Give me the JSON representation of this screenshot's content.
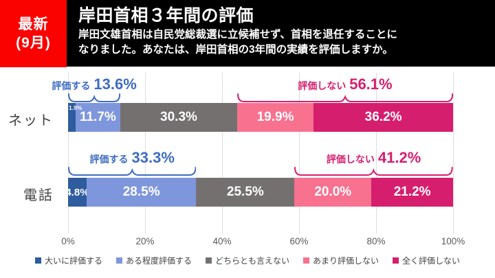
{
  "badge": {
    "line1": "最新",
    "line2": "(9月)",
    "bg_color": "#fa0200",
    "text_color": "#ffffff"
  },
  "header": {
    "bg_color": "#000000",
    "title": "岸田首相３年間の評価",
    "subtitle_line1": "岸田文雄首相は自民党総裁選に立候補せず、首相を退任することに",
    "subtitle_line2": "なりました。あなたは、岸田首相の3年間の実績を評価しますか。"
  },
  "chart_data": {
    "type": "bar",
    "stacked": true,
    "orientation": "horizontal",
    "categories": [
      "ネット",
      "電話"
    ],
    "series": [
      {
        "name": "大いに評価する",
        "color": "#2e5c9e",
        "values": [
          1.9,
          4.8
        ]
      },
      {
        "name": "ある程度評価する",
        "color": "#7e96dc",
        "values": [
          11.7,
          28.5
        ]
      },
      {
        "name": "どちらとも言えない",
        "color": "#757070",
        "values": [
          30.3,
          25.5
        ]
      },
      {
        "name": "あまり評価しない",
        "color": "#f8718f",
        "values": [
          19.9,
          20.0
        ]
      },
      {
        "name": "全く評価しない",
        "color": "#d61e6e",
        "values": [
          36.2,
          21.2
        ]
      }
    ],
    "segment_labels": [
      [
        "1.9%",
        "11.7%",
        "30.3%",
        "19.9%",
        "36.2%"
      ],
      [
        "4.8%",
        "28.5%",
        "25.5%",
        "20.0%",
        "21.2%"
      ]
    ],
    "annotations": [
      {
        "row": 0,
        "label": "評価する",
        "value": "13.6%",
        "from": 0,
        "to": 13.6,
        "color": "#3e6cc2"
      },
      {
        "row": 0,
        "label": "評価しない",
        "value": "56.1%",
        "from": 43.9,
        "to": 100,
        "color": "#d61e6e"
      },
      {
        "row": 1,
        "label": "評価する",
        "value": "33.3%",
        "from": 0,
        "to": 33.3,
        "color": "#3e6cc2"
      },
      {
        "row": 1,
        "label": "評価しない",
        "value": "41.2%",
        "from": 58.8,
        "to": 100,
        "color": "#d61e6e"
      }
    ],
    "x_ticks": [
      "0%",
      "20%",
      "40%",
      "60%",
      "80%",
      "100%"
    ],
    "xlim": [
      0,
      100
    ],
    "grid": true,
    "legend_position": "bottom"
  }
}
